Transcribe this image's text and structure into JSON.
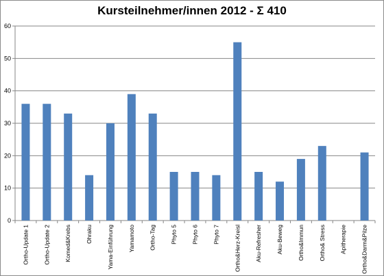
{
  "chart_data": {
    "type": "bar",
    "title": "Kursteilnehmer/innen 2012 - Σ 410",
    "categories": [
      "Ortho-Update 1",
      "Ortho-Update 2",
      "Komed&Krebs",
      "Ohraku",
      "Yama-Einführung",
      "Yamamoto",
      "Ortho-Tag",
      "Phyto 5",
      "Phyto 6",
      "Phyto 7",
      "Ortho&Herz-Kreisl",
      "Aku-Refresher",
      "Aku-Beweg",
      "Ortho&Immun",
      "Ortho& Stress",
      "Apitherapie",
      "Ortho&Darm&Pilze"
    ],
    "values": [
      36,
      36,
      33,
      14,
      30,
      39,
      33,
      15,
      15,
      14,
      55,
      15,
      12,
      19,
      23,
      0,
      21
    ],
    "ylim": [
      0,
      60
    ],
    "yticks": [
      0,
      10,
      20,
      30,
      40,
      50,
      60
    ],
    "grid": true,
    "legend": "none",
    "bar_color": "#4f81bd",
    "xlabel": "",
    "ylabel": ""
  }
}
